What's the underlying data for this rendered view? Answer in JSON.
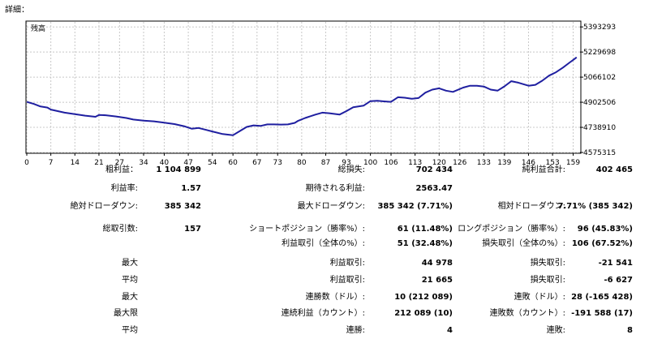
{
  "header": {
    "title": "詳細："
  },
  "chart_data": {
    "type": "line",
    "title": "",
    "legend_label": "残高",
    "series": [
      {
        "name": "残高",
        "color": "#1f1fa0",
        "x": [
          0,
          2,
          4,
          6,
          7,
          9,
          11,
          14,
          17,
          20,
          21,
          23,
          26,
          29,
          31,
          34,
          37,
          40,
          43,
          46,
          48,
          50,
          54,
          57,
          60,
          62,
          64,
          66,
          68,
          70,
          72,
          74,
          76,
          78,
          79,
          81,
          84,
          86,
          88,
          91,
          93,
          95,
          98,
          100,
          102,
          104,
          106,
          108,
          110,
          112,
          114,
          116,
          118,
          120,
          122,
          124,
          127,
          129,
          131,
          133,
          135,
          137,
          139,
          141,
          143,
          146,
          148,
          150,
          152,
          154,
          156,
          158,
          159,
          160
        ],
        "y": [
          4905000,
          4892000,
          4875000,
          4868000,
          4855000,
          4845000,
          4835000,
          4825000,
          4815000,
          4808000,
          4820000,
          4818000,
          4810000,
          4800000,
          4790000,
          4783000,
          4778000,
          4770000,
          4760000,
          4745000,
          4730000,
          4735000,
          4712000,
          4695000,
          4688000,
          4715000,
          4742000,
          4752000,
          4748000,
          4758000,
          4758000,
          4757000,
          4758000,
          4768000,
          4782000,
          4800000,
          4822000,
          4835000,
          4831000,
          4822000,
          4845000,
          4870000,
          4880000,
          4910000,
          4912000,
          4908000,
          4905000,
          4935000,
          4932000,
          4925000,
          4930000,
          4965000,
          4985000,
          4993000,
          4978000,
          4970000,
          4998000,
          5010000,
          5010000,
          5005000,
          4985000,
          4978000,
          5006000,
          5040000,
          5030000,
          5010000,
          5016000,
          5043000,
          5076000,
          5098000,
          5128000,
          5162000,
          5178000,
          5195000
        ]
      }
    ],
    "x_ticks": [
      "0",
      "7",
      "14",
      "21",
      "27",
      "34",
      "40",
      "47",
      "54",
      "60",
      "67",
      "73",
      "80",
      "87",
      "93",
      "100",
      "106",
      "113",
      "120",
      "126",
      "133",
      "139",
      "146",
      "153",
      "159"
    ],
    "y_ticks": [
      "4575315",
      "4738910",
      "4902506",
      "5066102",
      "5229698",
      "5393293"
    ],
    "x_range": [
      0,
      161
    ],
    "y_range": [
      4575315,
      5426000
    ],
    "grid": true
  },
  "stats": [
    {
      "label": "粗利益：",
      "value": "1 104 899"
    },
    {
      "label": "総損失:",
      "value": "702 434"
    },
    {
      "label": "純利益合計:",
      "value": "402 465"
    },
    {
      "label": "利益率:",
      "value": "1.57"
    },
    {
      "label": "期待される利益:",
      "value": "2563.47"
    },
    {
      "label": "絶対ドローダウン:",
      "value": "385 342"
    },
    {
      "label": "最大ドローダウン:",
      "value": "385 342 (7.71%)"
    },
    {
      "label": "相対ドローダウン:",
      "value": "7.71% (385 342)"
    },
    {
      "label": "総取引数:",
      "value": "157"
    },
    {
      "label": "ショートポジション（勝率%）:",
      "value": "61 (11.48%)"
    },
    {
      "label": "ロングポジション（勝率%）:",
      "value": "96 (45.83%)"
    },
    {
      "label": "利益取引（全体の%）:",
      "value": "51 (32.48%)"
    },
    {
      "label": "損失取引（全体の%）:",
      "value": "106 (67.52%)"
    },
    {
      "label": "最大"
    },
    {
      "label": "利益取引:",
      "value": "44 978"
    },
    {
      "label": "損失取引:",
      "value": "-21 541"
    },
    {
      "label": "平均"
    },
    {
      "label": "利益取引:",
      "value": "21 665"
    },
    {
      "label": "損失取引:",
      "value": "-6 627"
    },
    {
      "label": "最大"
    },
    {
      "label": "連勝数（ドル）:",
      "value": "10 (212 089)"
    },
    {
      "label": "連敗（ドル）:",
      "value": "28 (-165 428)"
    },
    {
      "label": "最大限"
    },
    {
      "label": "連続利益（カウント）:",
      "value": "212 089 (10)"
    },
    {
      "label": "連敗数（カウント）:",
      "value": "-191 588 (17)"
    },
    {
      "label": "平均"
    },
    {
      "label": "連勝:",
      "value": "4"
    },
    {
      "label": "連敗:",
      "value": "8"
    }
  ]
}
